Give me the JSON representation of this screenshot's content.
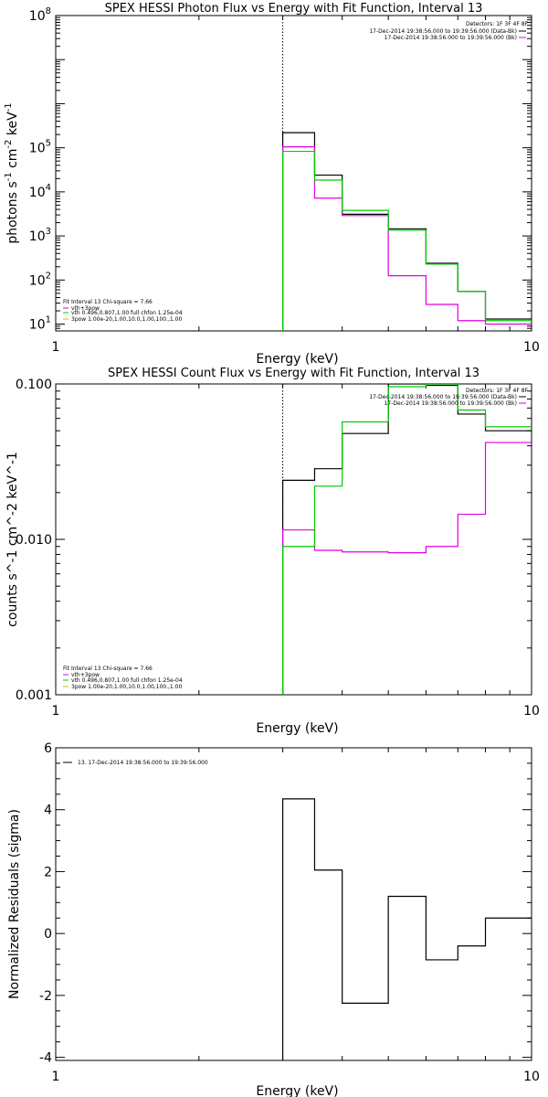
{
  "colors": {
    "data": "#000000",
    "model": "#e000e0",
    "vth": "#00cc00",
    "bpow": "#ccb800",
    "marker": "#000000"
  },
  "chart_data": [
    {
      "type": "line",
      "title": "SPEX HESSI Photon Flux vs Energy with Fit Function, Interval 13",
      "xlabel": "Energy (keV)",
      "ylabel": "photons s^-1 cm^-2 keV^-1",
      "ylabel_parts": [
        "photons s",
        "-1",
        " cm",
        "-2",
        " keV",
        "-1"
      ],
      "xscale": "log",
      "yscale": "log",
      "xlim": [
        1,
        10
      ],
      "ylim": [
        7,
        100000000.0
      ],
      "xticks": [
        {
          "v": 1,
          "label": "1"
        },
        {
          "v": 10,
          "label": "10"
        }
      ],
      "yticks": [
        {
          "v": 10,
          "m": "10",
          "e": "1"
        },
        {
          "v": 100,
          "m": "10",
          "e": "2"
        },
        {
          "v": 1000,
          "m": "10",
          "e": "3"
        },
        {
          "v": 10000,
          "m": "10",
          "e": "4"
        },
        {
          "v": 100000,
          "m": "10",
          "e": "5"
        },
        {
          "v": 100000000,
          "m": "10",
          "e": "8"
        }
      ],
      "vline": 3.0,
      "header": [
        "Detectors: 1F 3F 4F 8F",
        "17-Dec-2014 19:38:56.000 to 19:39:56.000 (Data-Bk)",
        "17-Dec-2014 19:38:56.000 to 19:39:56.000 (Bk)"
      ],
      "legend_lines": [
        "Fit Interval 13   Chi-square = 7.66",
        "vth+3pow",
        "vth 0.496,0.807,1.00  full chfon 1.25e-04",
        "3pow 1.00e-20,1.00,10.0,1.00,100.,1.00"
      ],
      "edges": [
        3,
        3.5,
        4,
        5,
        6,
        7,
        8,
        9,
        10
      ],
      "series": [
        {
          "name": "Data-Bk",
          "color": "data",
          "values": [
            220000.0,
            24000.0,
            3100.0,
            1450.0,
            240,
            55,
            13,
            13
          ]
        },
        {
          "name": "Bk",
          "color": "model",
          "values": [
            105000.0,
            7200.0,
            2900.0,
            125,
            28,
            12,
            10,
            10
          ]
        },
        {
          "name": "vth+3pow",
          "color": "vth",
          "values": [
            83000.0,
            18500.0,
            3800.0,
            1350.0,
            230,
            55,
            12,
            12
          ]
        }
      ]
    },
    {
      "type": "line",
      "title": "SPEX HESSI Count Flux vs Energy with Fit Function, Interval 13",
      "xlabel": "Energy (keV)",
      "ylabel": "counts s^-1 cm^-2 keV^-1",
      "xscale": "log",
      "yscale": "log",
      "xlim": [
        1,
        10
      ],
      "ylim": [
        0.001,
        0.1
      ],
      "xticks": [
        {
          "v": 1,
          "label": "1"
        },
        {
          "v": 10,
          "label": "10"
        }
      ],
      "yticks": [
        {
          "v": 0.001,
          "label": "0.001"
        },
        {
          "v": 0.01,
          "label": "0.010"
        },
        {
          "v": 0.1,
          "label": "0.100"
        }
      ],
      "vline": 3.0,
      "header": [
        "Detectors: 1F 3F 4F 8F",
        "17-Dec-2014 19:38:56.000 to 19:39:56.000 (Data-Bk)",
        "17-Dec-2014 19:38:56.000 to 19:39:56.000 (Bk)"
      ],
      "legend_lines": [
        "Fit Interval 13   Chi-square = 7.66",
        "vth+3pow",
        "vth 0.496,0.807,1.00  full chfon 1.25e-04",
        "3pow 1.00e-20,1.00,10.0,1.00,100.,1.00"
      ],
      "edges": [
        3,
        3.5,
        4,
        5,
        6,
        7,
        8,
        9,
        10
      ],
      "series": [
        {
          "name": "Data-Bk",
          "color": "data",
          "values": [
            0.024,
            0.0285,
            0.048,
            0.1,
            0.098,
            0.064,
            0.05,
            0.05
          ]
        },
        {
          "name": "Bk",
          "color": "model",
          "values": [
            0.0115,
            0.0085,
            0.0083,
            0.0082,
            0.009,
            0.0145,
            0.042,
            0.042
          ]
        },
        {
          "name": "vth+3pow",
          "color": "vth",
          "values": [
            0.009,
            0.022,
            0.057,
            0.096,
            0.1,
            0.068,
            0.053,
            0.053
          ]
        }
      ]
    },
    {
      "type": "line",
      "title": "",
      "xlabel": "Energy (keV)",
      "ylabel": "Normalized Residuals (sigma)",
      "xscale": "log",
      "yscale": "linear",
      "xlim": [
        1,
        10
      ],
      "ylim": [
        -4.1,
        6
      ],
      "xticks": [
        {
          "v": 1,
          "label": "1"
        },
        {
          "v": 10,
          "label": "10"
        }
      ],
      "yticks": [
        {
          "v": -4,
          "label": "-4"
        },
        {
          "v": -2,
          "label": "-2"
        },
        {
          "v": 0,
          "label": "0"
        },
        {
          "v": 2,
          "label": "2"
        },
        {
          "v": 4,
          "label": "4"
        },
        {
          "v": 6,
          "label": "6"
        }
      ],
      "legend_lines": [
        "13. 17-Dec-2014 19:38:56.000 to 19:39:56.000"
      ],
      "edges": [
        3,
        3.5,
        4,
        5,
        6,
        7,
        8,
        9,
        10
      ],
      "series": [
        {
          "name": "13. 17-Dec-2014 19:38:56.000 to 19:39:56.000",
          "color": "data",
          "values": [
            4.35,
            2.05,
            -2.25,
            1.2,
            -0.85,
            -0.4,
            0.5,
            0.5
          ]
        }
      ]
    }
  ]
}
